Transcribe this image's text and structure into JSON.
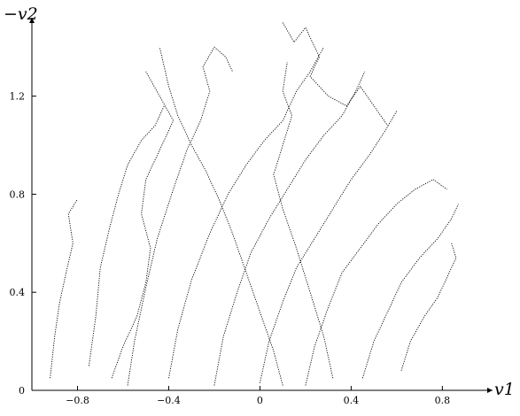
{
  "chart_data": {
    "type": "scatter",
    "title": "",
    "xlabel": "v1",
    "ylabel": "−v2",
    "xlim": [
      -1.0,
      1.02
    ],
    "ylim": [
      0,
      1.52
    ],
    "x_ticks": [
      {
        "value": -0.8,
        "label": "−0.8"
      },
      {
        "value": -0.4,
        "label": "−0.4"
      },
      {
        "value": 0,
        "label": "0"
      },
      {
        "value": 0.4,
        "label": "0.4"
      },
      {
        "value": 0.8,
        "label": "0.8"
      }
    ],
    "y_ticks": [
      {
        "value": 0,
        "label": "0"
      },
      {
        "value": 0.4,
        "label": "0.4"
      },
      {
        "value": 0.8,
        "label": "0.8"
      },
      {
        "value": 1.2,
        "label": "1.2"
      }
    ],
    "grid": false,
    "legend": "none",
    "line_style": "dotted",
    "color": "#000000",
    "series": [
      {
        "values": [
          [
            -0.92,
            0.05
          ],
          [
            -0.9,
            0.22
          ],
          [
            -0.88,
            0.35
          ],
          [
            -0.85,
            0.48
          ],
          [
            -0.82,
            0.6
          ],
          [
            -0.84,
            0.72
          ],
          [
            -0.8,
            0.78
          ]
        ]
      },
      {
        "values": [
          [
            -0.75,
            0.1
          ],
          [
            -0.72,
            0.3
          ],
          [
            -0.7,
            0.5
          ],
          [
            -0.66,
            0.66
          ],
          [
            -0.62,
            0.8
          ],
          [
            -0.58,
            0.92
          ],
          [
            -0.52,
            1.02
          ],
          [
            -0.46,
            1.08
          ],
          [
            -0.42,
            1.16
          ]
        ]
      },
      {
        "values": [
          [
            -0.58,
            0.02
          ],
          [
            -0.55,
            0.2
          ],
          [
            -0.5,
            0.42
          ],
          [
            -0.45,
            0.62
          ],
          [
            -0.38,
            0.82
          ],
          [
            -0.32,
            0.98
          ],
          [
            -0.26,
            1.1
          ],
          [
            -0.22,
            1.22
          ],
          [
            -0.25,
            1.32
          ],
          [
            -0.2,
            1.4
          ],
          [
            -0.15,
            1.36
          ],
          [
            -0.12,
            1.3
          ]
        ]
      },
      {
        "values": [
          [
            -0.4,
            0.05
          ],
          [
            -0.36,
            0.25
          ],
          [
            -0.3,
            0.45
          ],
          [
            -0.22,
            0.64
          ],
          [
            -0.14,
            0.8
          ],
          [
            -0.06,
            0.92
          ],
          [
            0.02,
            1.02
          ],
          [
            0.1,
            1.1
          ],
          [
            0.16,
            1.22
          ],
          [
            0.22,
            1.3
          ],
          [
            0.28,
            1.4
          ]
        ]
      },
      {
        "values": [
          [
            -0.2,
            0.02
          ],
          [
            -0.16,
            0.22
          ],
          [
            -0.1,
            0.4
          ],
          [
            -0.04,
            0.56
          ],
          [
            0.04,
            0.7
          ],
          [
            0.12,
            0.82
          ],
          [
            0.2,
            0.94
          ],
          [
            0.28,
            1.04
          ],
          [
            0.36,
            1.12
          ],
          [
            0.42,
            1.22
          ],
          [
            0.46,
            1.3
          ]
        ]
      },
      {
        "values": [
          [
            0.0,
            0.03
          ],
          [
            0.04,
            0.2
          ],
          [
            0.1,
            0.36
          ],
          [
            0.16,
            0.5
          ],
          [
            0.24,
            0.62
          ],
          [
            0.32,
            0.74
          ],
          [
            0.4,
            0.86
          ],
          [
            0.48,
            0.96
          ],
          [
            0.55,
            1.06
          ],
          [
            0.6,
            1.14
          ]
        ]
      },
      {
        "values": [
          [
            0.2,
            0.02
          ],
          [
            0.24,
            0.18
          ],
          [
            0.3,
            0.34
          ],
          [
            0.36,
            0.48
          ],
          [
            0.44,
            0.58
          ],
          [
            0.52,
            0.68
          ],
          [
            0.6,
            0.76
          ],
          [
            0.68,
            0.82
          ],
          [
            0.76,
            0.86
          ],
          [
            0.82,
            0.82
          ]
        ]
      },
      {
        "values": [
          [
            0.45,
            0.05
          ],
          [
            0.5,
            0.2
          ],
          [
            0.56,
            0.32
          ],
          [
            0.62,
            0.44
          ],
          [
            0.7,
            0.54
          ],
          [
            0.78,
            0.62
          ],
          [
            0.84,
            0.7
          ],
          [
            0.87,
            0.76
          ]
        ]
      },
      {
        "values": [
          [
            0.62,
            0.08
          ],
          [
            0.66,
            0.2
          ],
          [
            0.72,
            0.3
          ],
          [
            0.78,
            0.38
          ],
          [
            0.82,
            0.46
          ],
          [
            0.86,
            0.54
          ],
          [
            0.84,
            0.6
          ]
        ]
      },
      {
        "values": [
          [
            -0.65,
            0.05
          ],
          [
            -0.6,
            0.18
          ],
          [
            -0.54,
            0.3
          ],
          [
            -0.5,
            0.44
          ],
          [
            -0.48,
            0.58
          ],
          [
            -0.52,
            0.72
          ],
          [
            -0.5,
            0.86
          ],
          [
            -0.44,
            0.98
          ],
          [
            -0.38,
            1.1
          ],
          [
            -0.44,
            1.2
          ],
          [
            -0.5,
            1.3
          ]
        ]
      },
      {
        "values": [
          [
            0.1,
            0.02
          ],
          [
            0.06,
            0.16
          ],
          [
            0.0,
            0.32
          ],
          [
            -0.06,
            0.48
          ],
          [
            -0.12,
            0.64
          ],
          [
            -0.18,
            0.78
          ],
          [
            -0.24,
            0.9
          ],
          [
            -0.3,
            1.0
          ],
          [
            -0.36,
            1.12
          ],
          [
            -0.4,
            1.24
          ],
          [
            -0.44,
            1.4
          ]
        ]
      },
      {
        "values": [
          [
            0.32,
            0.05
          ],
          [
            0.28,
            0.22
          ],
          [
            0.22,
            0.4
          ],
          [
            0.16,
            0.58
          ],
          [
            0.1,
            0.74
          ],
          [
            0.06,
            0.88
          ],
          [
            0.1,
            1.0
          ],
          [
            0.14,
            1.12
          ],
          [
            0.1,
            1.22
          ],
          [
            0.12,
            1.34
          ]
        ]
      },
      {
        "values": [
          [
            0.1,
            1.5
          ],
          [
            0.15,
            1.42
          ],
          [
            0.2,
            1.48
          ],
          [
            0.26,
            1.36
          ],
          [
            0.22,
            1.28
          ],
          [
            0.3,
            1.2
          ],
          [
            0.38,
            1.16
          ],
          [
            0.44,
            1.24
          ],
          [
            0.5,
            1.16
          ],
          [
            0.56,
            1.08
          ]
        ]
      }
    ]
  }
}
